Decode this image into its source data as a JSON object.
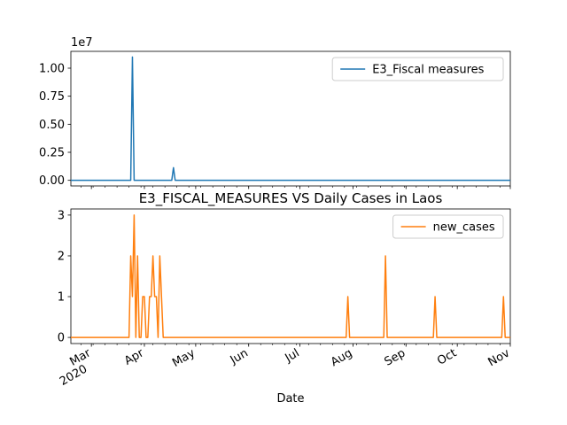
{
  "chart_data": {
    "type": "line",
    "title": "E3_FISCAL_MEASURES VS Daily Cases in Laos",
    "xlabel": "Date",
    "x_range": [
      "2020-02-18",
      "2020-11-01"
    ],
    "x_ticks": [
      {
        "date": "2020-03-01",
        "label": "Mar",
        "sublabel": "2020"
      },
      {
        "date": "2020-04-01",
        "label": "Apr"
      },
      {
        "date": "2020-05-01",
        "label": "May"
      },
      {
        "date": "2020-06-01",
        "label": "Jun"
      },
      {
        "date": "2020-07-01",
        "label": "Jul"
      },
      {
        "date": "2020-08-01",
        "label": "Aug"
      },
      {
        "date": "2020-09-01",
        "label": "Sep"
      },
      {
        "date": "2020-10-01",
        "label": "Oct"
      },
      {
        "date": "2020-11-01",
        "label": "Nov"
      }
    ],
    "panels": [
      {
        "id": "top",
        "ylim": [
          -500000,
          11500000
        ],
        "y_ticks": [
          0,
          2500000,
          5000000,
          7500000,
          10000000
        ],
        "y_tick_labels": [
          "0.00",
          "0.25",
          "0.50",
          "0.75",
          "1.00"
        ],
        "y_exponent_label": "1e7",
        "legend_position": "upper right",
        "series": [
          {
            "name": "E3_Fiscal measures",
            "color": "#1f77b4",
            "points": [
              [
                "2020-02-18",
                0
              ],
              [
                "2020-03-24",
                0
              ],
              [
                "2020-03-25",
                11000000
              ],
              [
                "2020-03-26",
                0
              ],
              [
                "2020-04-17",
                0
              ],
              [
                "2020-04-18",
                1130000
              ],
              [
                "2020-04-19",
                0
              ],
              [
                "2020-11-01",
                0
              ]
            ]
          }
        ]
      },
      {
        "id": "bottom",
        "ylim": [
          -0.15,
          3.15
        ],
        "y_ticks": [
          0,
          1,
          2,
          3
        ],
        "y_tick_labels": [
          "0",
          "1",
          "2",
          "3"
        ],
        "legend_position": "upper right",
        "series": [
          {
            "name": "new_cases",
            "color": "#ff7f0e",
            "points": [
              [
                "2020-02-18",
                0
              ],
              [
                "2020-03-23",
                0
              ],
              [
                "2020-03-24",
                2
              ],
              [
                "2020-03-25",
                1
              ],
              [
                "2020-03-26",
                3
              ],
              [
                "2020-03-27",
                0
              ],
              [
                "2020-03-28",
                2
              ],
              [
                "2020-03-29",
                0
              ],
              [
                "2020-03-30",
                0
              ],
              [
                "2020-03-31",
                1
              ],
              [
                "2020-04-01",
                1
              ],
              [
                "2020-04-02",
                0
              ],
              [
                "2020-04-03",
                0
              ],
              [
                "2020-04-04",
                1
              ],
              [
                "2020-04-05",
                1
              ],
              [
                "2020-04-06",
                2
              ],
              [
                "2020-04-07",
                1
              ],
              [
                "2020-04-08",
                1
              ],
              [
                "2020-04-09",
                0
              ],
              [
                "2020-04-10",
                2
              ],
              [
                "2020-04-11",
                1
              ],
              [
                "2020-04-12",
                0
              ],
              [
                "2020-07-28",
                0
              ],
              [
                "2020-07-29",
                1
              ],
              [
                "2020-07-30",
                0
              ],
              [
                "2020-08-19",
                0
              ],
              [
                "2020-08-20",
                2
              ],
              [
                "2020-08-21",
                0
              ],
              [
                "2020-09-17",
                0
              ],
              [
                "2020-09-18",
                1
              ],
              [
                "2020-09-19",
                0
              ],
              [
                "2020-10-27",
                0
              ],
              [
                "2020-10-28",
                1
              ],
              [
                "2020-10-29",
                0
              ],
              [
                "2020-11-01",
                0
              ]
            ]
          }
        ]
      }
    ]
  }
}
